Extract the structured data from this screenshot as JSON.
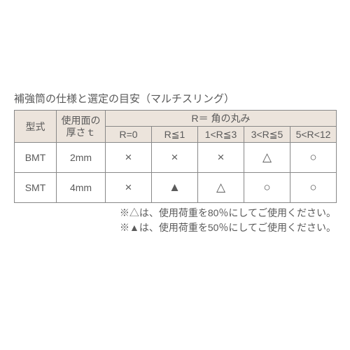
{
  "caption": "補強筒の仕様と選定の目安（マルチスリング）",
  "headers": {
    "model": "型式",
    "thickness_l1": "使用面の",
    "thickness_l2": "厚さｔ",
    "r_group": "R＝ 角の丸み",
    "r0": "R=0",
    "r1": "R≦1",
    "r2": "1<R≦3",
    "r3": "3<R≦5",
    "r4": "5<R<12"
  },
  "rows": [
    {
      "model": "BMT",
      "thickness": "2mm",
      "cells": [
        "×",
        "×",
        "×",
        "△",
        "○"
      ]
    },
    {
      "model": "SMT",
      "thickness": "4mm",
      "cells": [
        "×",
        "▲",
        "△",
        "○",
        "○"
      ]
    }
  ],
  "notes": {
    "n1": "※△は、使用荷重を80％にしてご使用ください。",
    "n2": "※▲は、使用荷重を50％にしてご使用ください。"
  },
  "colors": {
    "header_bg": "#ece4dc",
    "border": "#888888",
    "text": "#5a5a5a",
    "page_bg": "#ffffff"
  }
}
